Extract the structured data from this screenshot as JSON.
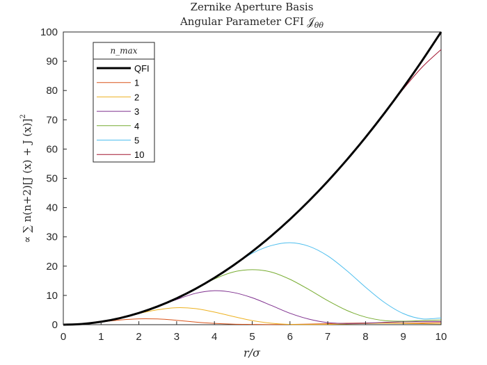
{
  "chart_data": {
    "type": "line",
    "title_line1": "Zernike Aperture Basis",
    "title_line2": "Angular Parameter CFI 𝒥",
    "title_sub": "θθ",
    "xlabel": "r/σ",
    "ylabel": "∝ ∑ n(n+2)[J (x) + J (x)]",
    "xlim": [
      0,
      10
    ],
    "ylim": [
      0,
      100
    ],
    "xticks": [
      "0",
      "1",
      "2",
      "3",
      "4",
      "5",
      "6",
      "7",
      "8",
      "9",
      "10"
    ],
    "yticks": [
      "0",
      "10",
      "20",
      "30",
      "40",
      "50",
      "60",
      "70",
      "80",
      "90",
      "100"
    ],
    "legend_title": "n_max",
    "legend_placement": "top-left",
    "grid": false,
    "series": [
      {
        "name": "QFI",
        "color": "#000000",
        "width": 3,
        "x": [
          0,
          0.5,
          1,
          1.5,
          2,
          2.5,
          3,
          3.5,
          4,
          4.5,
          5,
          5.5,
          6,
          6.5,
          7,
          7.5,
          8,
          8.5,
          9,
          9.5,
          10
        ],
        "y": [
          0,
          0.25,
          1,
          2.25,
          4,
          6.25,
          9,
          12.25,
          16,
          20.25,
          25,
          30.25,
          36,
          42.25,
          49,
          56.25,
          64,
          72.25,
          81,
          90.25,
          100
        ]
      },
      {
        "name": "1",
        "color": "#d95319",
        "width": 1,
        "x": [
          0,
          0.5,
          1,
          1.5,
          2,
          2.5,
          3,
          3.5,
          4,
          4.5,
          5,
          5.5,
          6,
          6.5,
          7,
          7.5,
          8,
          8.5,
          9,
          9.5,
          10
        ],
        "y": [
          0,
          0.24,
          0.9,
          1.6,
          2.0,
          1.95,
          1.5,
          0.9,
          0.45,
          0.18,
          0.1,
          0.05,
          0.1,
          0.2,
          0.35,
          0.5,
          0.6,
          0.6,
          0.55,
          0.6,
          0.8
        ]
      },
      {
        "name": "2",
        "color": "#edb120",
        "width": 1,
        "x": [
          0,
          0.5,
          1,
          1.5,
          2,
          2.5,
          3,
          3.5,
          4,
          4.5,
          5,
          5.5,
          6,
          6.5,
          7,
          7.5,
          8,
          8.5,
          9,
          9.5,
          10
        ],
        "y": [
          0,
          0.25,
          1,
          2.2,
          3.8,
          5.1,
          5.8,
          5.5,
          4.3,
          2.8,
          1.4,
          0.5,
          0.1,
          0.05,
          0.1,
          0.25,
          0.4,
          0.5,
          0.45,
          0.35,
          0.3
        ]
      },
      {
        "name": "3",
        "color": "#7e2f8e",
        "width": 1,
        "x": [
          0,
          0.5,
          1,
          1.5,
          2,
          2.5,
          3,
          3.5,
          4,
          4.5,
          5,
          5.5,
          6,
          6.5,
          7,
          7.5,
          8,
          8.5,
          9,
          9.5,
          10
        ],
        "y": [
          0,
          0.25,
          1,
          2.25,
          4,
          6.2,
          8.6,
          10.7,
          11.6,
          11,
          9.2,
          6.6,
          3.9,
          1.9,
          0.7,
          0.4,
          0.5,
          0.8,
          1.0,
          1.1,
          1.1
        ]
      },
      {
        "name": "4",
        "color": "#77ac30",
        "width": 1,
        "x": [
          0,
          0.5,
          1,
          1.5,
          2,
          2.5,
          3,
          3.5,
          4,
          4.5,
          5,
          5.5,
          6,
          6.5,
          7,
          7.5,
          8,
          8.5,
          9,
          9.5,
          10
        ],
        "y": [
          0,
          0.25,
          1,
          2.25,
          4,
          6.25,
          9,
          12.2,
          15.6,
          18.0,
          18.8,
          18.0,
          15.5,
          12.0,
          8.2,
          4.9,
          2.6,
          1.4,
          1.2,
          1.4,
          1.6
        ]
      },
      {
        "name": "5",
        "color": "#4dbeee",
        "width": 1,
        "x": [
          0,
          0.5,
          1,
          1.5,
          2,
          2.5,
          3,
          3.5,
          4,
          4.5,
          5,
          5.5,
          6,
          6.5,
          7,
          7.5,
          8,
          8.5,
          9,
          9.5,
          10
        ],
        "y": [
          0,
          0.25,
          1,
          2.25,
          4,
          6.25,
          9,
          12.25,
          16,
          20.2,
          24.4,
          27.0,
          28.0,
          26.8,
          23.5,
          18.5,
          12.8,
          7.6,
          3.8,
          2.0,
          2.3
        ]
      },
      {
        "name": "10",
        "color": "#a2142f",
        "width": 1,
        "x": [
          0,
          0.5,
          1,
          1.5,
          2,
          2.5,
          3,
          3.5,
          4,
          4.5,
          5,
          5.5,
          6,
          6.5,
          7,
          7.5,
          8,
          8.5,
          9,
          9.5,
          10
        ],
        "y": [
          0,
          0.25,
          1,
          2.25,
          4,
          6.25,
          9,
          12.25,
          16,
          20.25,
          25,
          30.25,
          36,
          42.25,
          49,
          56.25,
          64,
          72.1,
          80.5,
          88.0,
          94.0
        ]
      }
    ]
  }
}
